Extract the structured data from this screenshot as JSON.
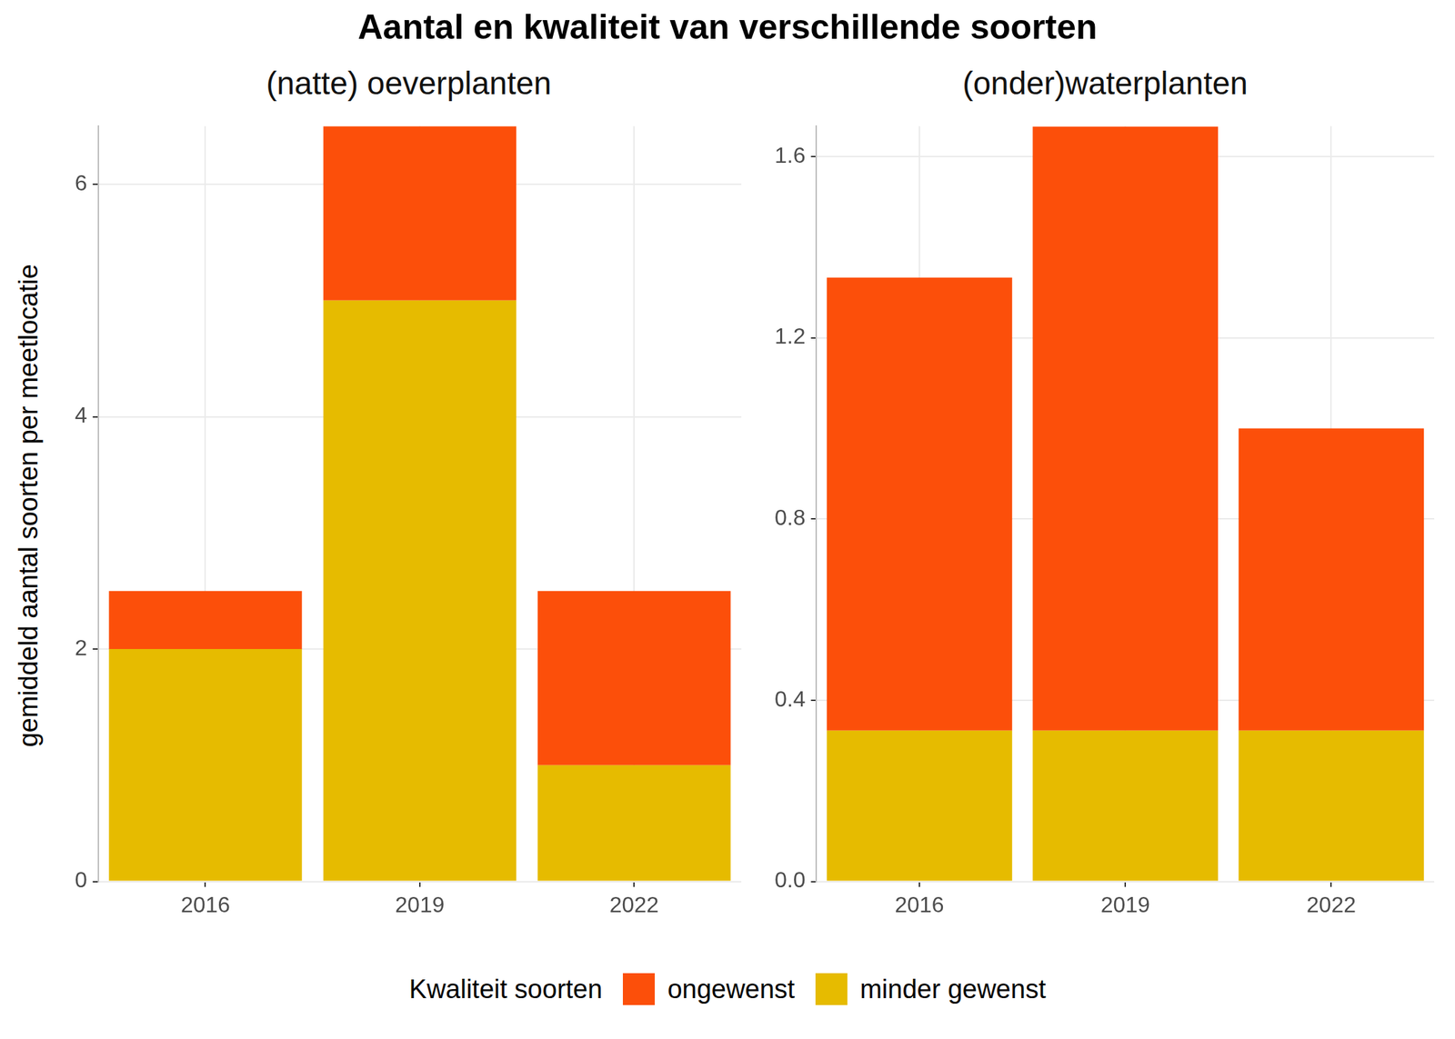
{
  "title": "Aantal en kwaliteit van verschillende soorten",
  "y_label": "gemiddeld aantal soorten per meetlocatie",
  "legend_title": "Kwaliteit soorten",
  "chart_data": [
    {
      "type": "bar",
      "subtitle": "(natte) oeverplanten",
      "categories": [
        "2016",
        "2019",
        "2022"
      ],
      "series": [
        {
          "name": "ongewenst",
          "color": "#fc4f0a",
          "values": [
            0.5,
            1.5,
            1.5
          ]
        },
        {
          "name": "minder gewenst",
          "color": "#e6bb00",
          "values": [
            2,
            5,
            1
          ]
        }
      ],
      "ylim": [
        0,
        6.5
      ],
      "yticks": [
        0,
        2,
        4,
        6
      ],
      "stacked": true,
      "grid": true,
      "legend": "bottom"
    },
    {
      "type": "bar",
      "subtitle": "(onder)waterplanten",
      "categories": [
        "2016",
        "2019",
        "2022"
      ],
      "series": [
        {
          "name": "ongewenst",
          "color": "#fc4f0a",
          "values": [
            1.0,
            1.333,
            0.667
          ]
        },
        {
          "name": "minder gewenst",
          "color": "#e6bb00",
          "values": [
            0.333,
            0.333,
            0.333
          ]
        }
      ],
      "ylim": [
        0,
        1.667
      ],
      "yticks": [
        {
          "value": 0,
          "label": "0.0"
        },
        0.4,
        0.8,
        1.2,
        1.6
      ],
      "stacked": true,
      "grid": true,
      "legend": "bottom"
    }
  ]
}
